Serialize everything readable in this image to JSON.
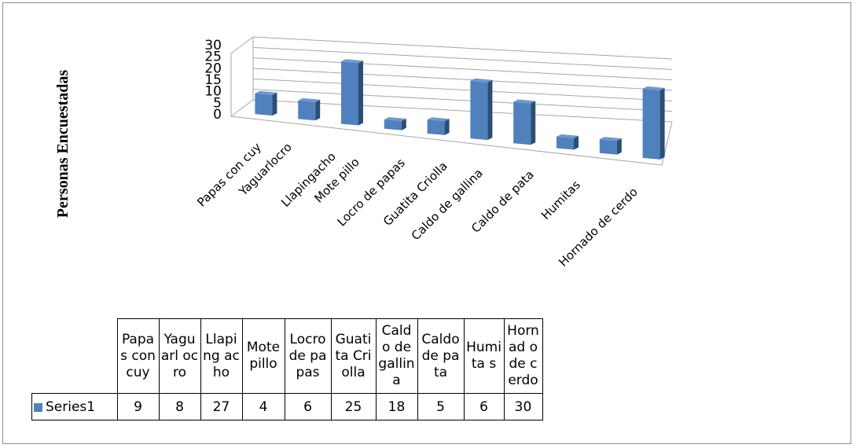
{
  "chart_data": {
    "type": "bar",
    "view": "3d-column",
    "ylabel": "Personas Encuestadas",
    "ylim": [
      0,
      30
    ],
    "yticks": [
      0,
      5,
      10,
      15,
      20,
      25,
      30
    ],
    "categories": [
      "Papas con cuy",
      "Yaguarlocro",
      "Llapingacho",
      "Mote pillo",
      "Locro de papas",
      "Guatita  Criolla",
      "Caldo de gallina",
      "Caldo de pata",
      "Humitas",
      "Hornado de cerdo"
    ],
    "table_headers": [
      "Papas con cuy",
      "Yaguarl ocro",
      "Llaping acho",
      "Mote pillo",
      "Locro de papas",
      "Guatita Criolla",
      "Caldo de gallina",
      "Caldo de pata",
      "Humita s",
      "Hornad o de cerdo"
    ],
    "series": [
      {
        "name": "Series1",
        "values": [
          9,
          8,
          27,
          4,
          6,
          25,
          18,
          5,
          6,
          30
        ]
      }
    ],
    "bar_color": "#4f81bd",
    "legend": "data-table"
  }
}
